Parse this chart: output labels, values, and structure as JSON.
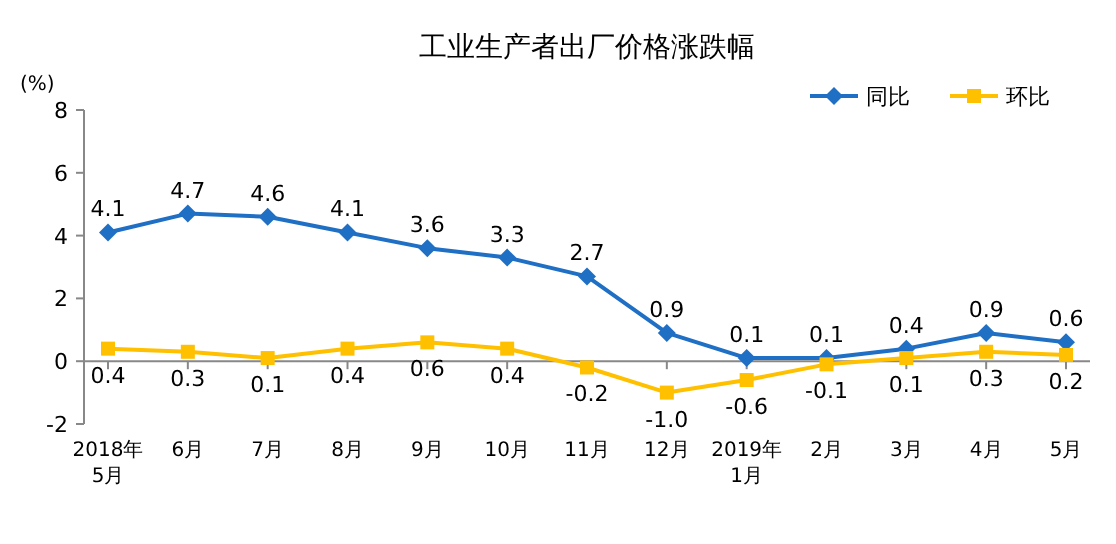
{
  "chart_data": {
    "type": "line",
    "title": "工业生产者出厂价格涨跌幅",
    "ylabel": "(%)",
    "categories": [
      "2018年\n5月",
      "6月",
      "7月",
      "8月",
      "9月",
      "10月",
      "11月",
      "12月",
      "2019年\n1月",
      "2月",
      "3月",
      "4月",
      "5月"
    ],
    "series": [
      {
        "name": "同比",
        "color": "#1f6fc5",
        "marker": "diamond",
        "values": [
          4.1,
          4.7,
          4.6,
          4.1,
          3.6,
          3.3,
          2.7,
          0.9,
          0.1,
          0.1,
          0.4,
          0.9,
          0.6
        ],
        "value_labels": [
          "4.1",
          "4.7",
          "4.6",
          "4.1",
          "3.6",
          "3.3",
          "2.7",
          "0.9",
          "0.1",
          "0.1",
          "0.4",
          "0.9",
          "0.6"
        ]
      },
      {
        "name": "环比",
        "color": "#ffc000",
        "marker": "square",
        "values": [
          0.4,
          0.3,
          0.1,
          0.4,
          0.6,
          0.4,
          -0.2,
          -1.0,
          -0.6,
          -0.1,
          0.1,
          0.3,
          0.2
        ],
        "value_labels": [
          "0.4",
          "0.3",
          "0.1",
          "0.4",
          "0.6",
          "0.4",
          "-0.2",
          "-1.0",
          "-0.6",
          "-0.1",
          "0.1",
          "0.3",
          "0.2"
        ]
      }
    ],
    "ylim": [
      -2,
      8
    ],
    "yticks": [
      -2,
      0,
      2,
      4,
      6,
      8
    ],
    "legend": "top right"
  }
}
